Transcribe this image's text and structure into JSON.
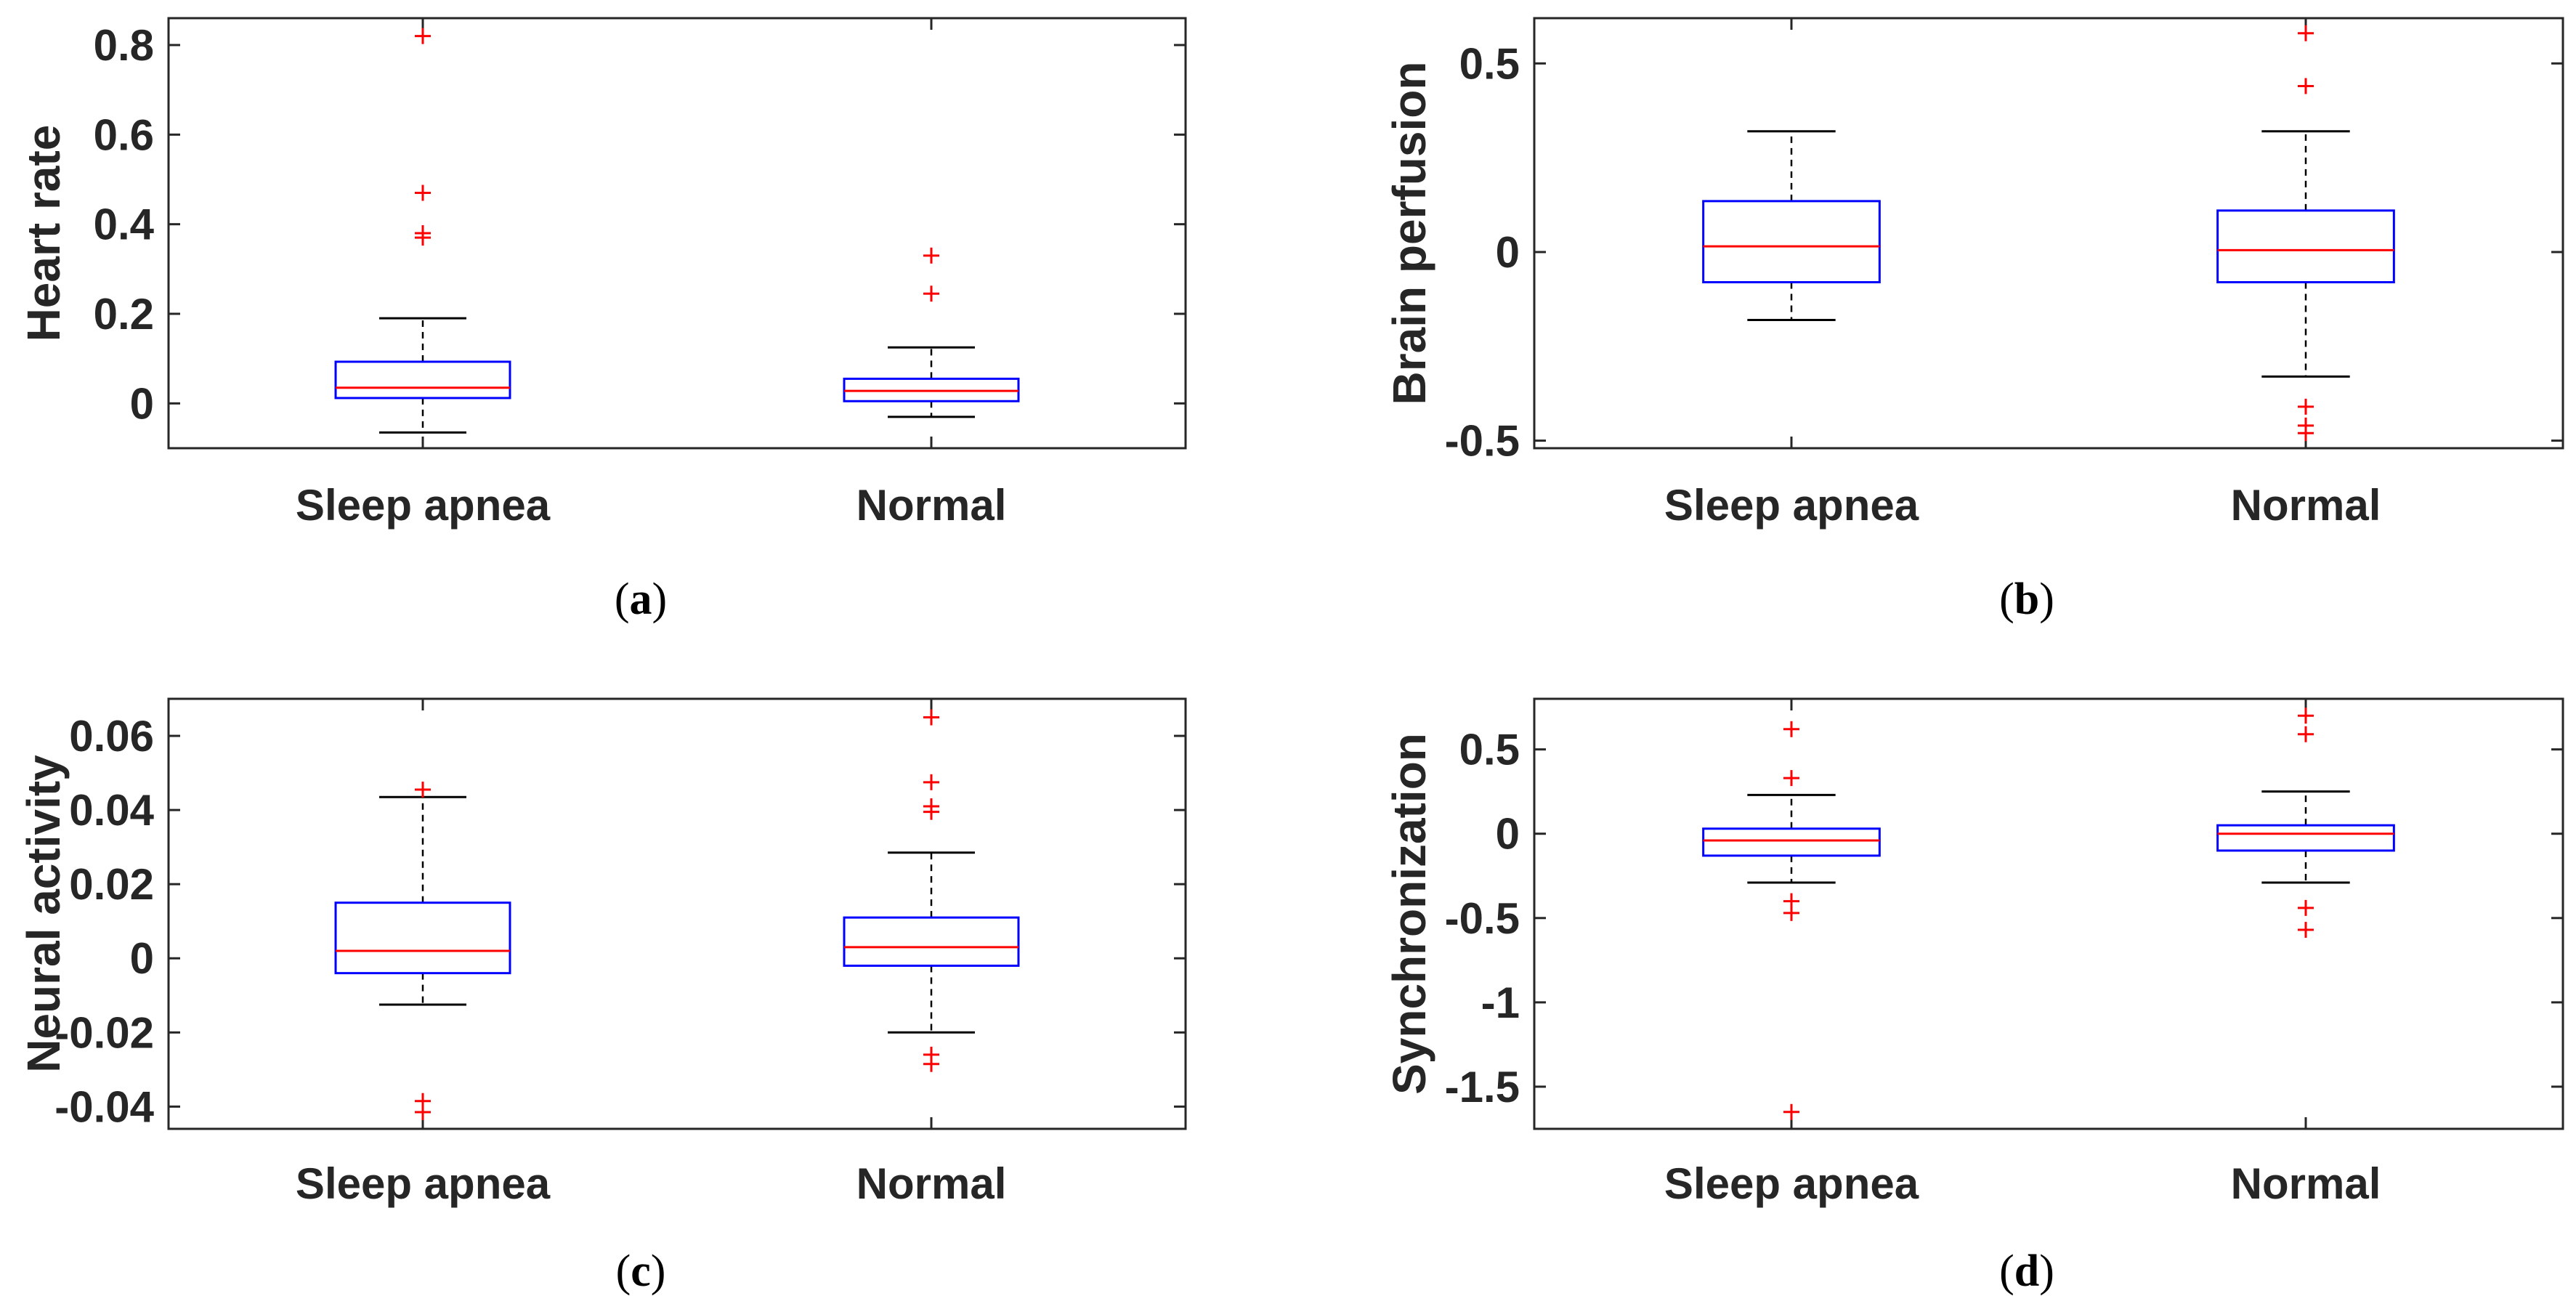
{
  "colors": {
    "box": "#0000ff",
    "median": "#ff0000",
    "outlier": "#ff0000",
    "whisker": "#000000",
    "axis": "#262626"
  },
  "chart_data": [
    {
      "type": "box",
      "panel": "(a)",
      "panel_letter": "a",
      "ylabel": "Heart rate",
      "categories": [
        "Sleep apnea",
        "Normal"
      ],
      "ylim": [
        -0.1,
        0.86
      ],
      "yticks": [
        0,
        0.2,
        0.4,
        0.6,
        0.8
      ],
      "ytick_labels": [
        "0",
        "0.2",
        "0.4",
        "0.6",
        "0.8"
      ],
      "boxes": [
        {
          "name": "Sleep apnea",
          "whisker_low": -0.065,
          "q1": 0.012,
          "median": 0.035,
          "q3": 0.093,
          "whisker_high": 0.19,
          "outliers": [
            0.38,
            0.37,
            0.47,
            0.82
          ]
        },
        {
          "name": "Normal",
          "whisker_low": -0.03,
          "q1": 0.005,
          "median": 0.028,
          "q3": 0.055,
          "whisker_high": 0.125,
          "outliers": [
            0.245,
            0.33
          ]
        }
      ]
    },
    {
      "type": "box",
      "panel": "(b)",
      "panel_letter": "b",
      "ylabel": "Brain perfusion",
      "categories": [
        "Sleep apnea",
        "Normal"
      ],
      "ylim": [
        -0.52,
        0.62
      ],
      "yticks": [
        -0.5,
        0,
        0.5
      ],
      "ytick_labels": [
        "-0.5",
        "0",
        "0.5"
      ],
      "boxes": [
        {
          "name": "Sleep apnea",
          "whisker_low": -0.18,
          "q1": -0.08,
          "median": 0.015,
          "q3": 0.135,
          "whisker_high": 0.32,
          "outliers": []
        },
        {
          "name": "Normal",
          "whisker_low": -0.33,
          "q1": -0.08,
          "median": 0.005,
          "q3": 0.11,
          "whisker_high": 0.32,
          "outliers": [
            -0.41,
            -0.46,
            -0.48,
            0.44,
            0.58
          ]
        }
      ]
    },
    {
      "type": "box",
      "panel": "(c)",
      "panel_letter": "c",
      "ylabel": "Neural activity",
      "categories": [
        "Sleep apnea",
        "Normal"
      ],
      "ylim": [
        -0.046,
        0.07
      ],
      "yticks": [
        -0.04,
        -0.02,
        0,
        0.02,
        0.04,
        0.06
      ],
      "ytick_labels": [
        "-0.04",
        "-0.02",
        "0",
        "0.02",
        "0.04",
        "0.06"
      ],
      "boxes": [
        {
          "name": "Sleep apnea",
          "whisker_low": -0.0125,
          "q1": -0.004,
          "median": 0.002,
          "q3": 0.015,
          "whisker_high": 0.0435,
          "outliers": [
            -0.0385,
            -0.0415,
            0.0455
          ]
        },
        {
          "name": "Normal",
          "whisker_low": -0.02,
          "q1": -0.002,
          "median": 0.003,
          "q3": 0.011,
          "whisker_high": 0.0285,
          "outliers": [
            -0.026,
            -0.0285,
            0.0395,
            0.041,
            0.0475,
            0.065
          ]
        }
      ]
    },
    {
      "type": "box",
      "panel": "(d)",
      "panel_letter": "d",
      "ylabel": "Synchronization",
      "categories": [
        "Sleep apnea",
        "Normal"
      ],
      "ylim": [
        -1.75,
        0.8
      ],
      "yticks": [
        -1.5,
        -1,
        -0.5,
        0,
        0.5
      ],
      "ytick_labels": [
        "-1.5",
        "-1",
        "-0.5",
        "0",
        "0.5"
      ],
      "boxes": [
        {
          "name": "Sleep apnea",
          "whisker_low": -0.29,
          "q1": -0.13,
          "median": -0.04,
          "q3": 0.03,
          "whisker_high": 0.23,
          "outliers": [
            -0.4,
            -0.47,
            -1.65,
            0.33,
            0.62
          ]
        },
        {
          "name": "Normal",
          "whisker_low": -0.29,
          "q1": -0.1,
          "median": 0.0,
          "q3": 0.05,
          "whisker_high": 0.25,
          "outliers": [
            -0.44,
            -0.57,
            0.59,
            0.7
          ]
        }
      ]
    }
  ]
}
